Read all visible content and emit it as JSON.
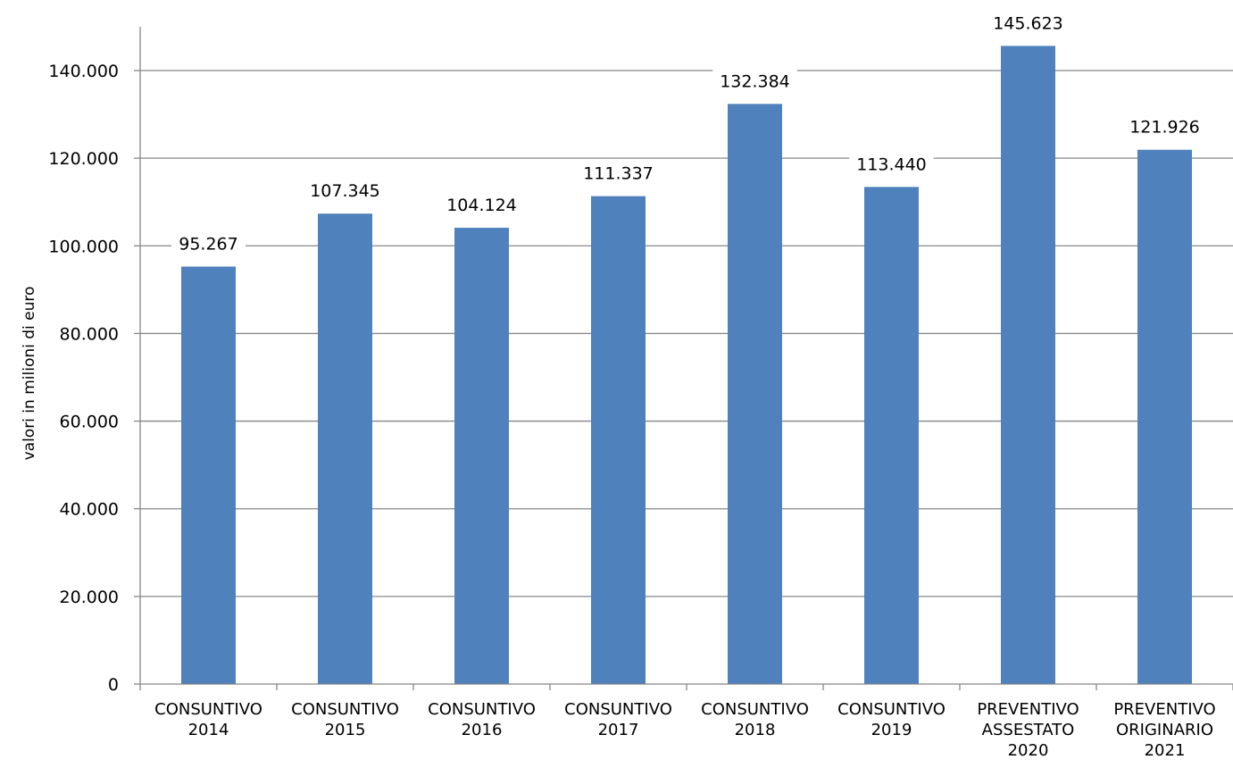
{
  "chart_data": {
    "type": "bar",
    "categories": [
      [
        "CONSUNTIVO",
        "2014"
      ],
      [
        "CONSUNTIVO",
        "2015"
      ],
      [
        "CONSUNTIVO",
        "2016"
      ],
      [
        "CONSUNTIVO",
        "2017"
      ],
      [
        "CONSUNTIVO",
        "2018"
      ],
      [
        "CONSUNTIVO",
        "2019"
      ],
      [
        "PREVENTIVO",
        "ASSESTATO",
        "2020"
      ],
      [
        "PREVENTIVO",
        "ORIGINARIO",
        "2021"
      ]
    ],
    "values": [
      95267,
      107345,
      104124,
      111337,
      132384,
      113440,
      145623,
      121926
    ],
    "data_labels": [
      "95.267",
      "107.345",
      "104.124",
      "111.337",
      "132.384",
      "113.440",
      "145.623",
      "121.926"
    ],
    "title": "",
    "xlabel": "",
    "ylabel": "valori in milioni di euro",
    "ylim": [
      0,
      140000
    ],
    "yticks": [
      0,
      20000,
      40000,
      60000,
      80000,
      100000,
      120000,
      140000
    ],
    "ytick_labels": [
      "0",
      "20.000",
      "40.000",
      "60.000",
      "80.000",
      "100.000",
      "120.000",
      "140.000"
    ],
    "grid": true,
    "legend": "none",
    "bar_color": "#4f81bd",
    "grid_color": "#878787",
    "axis_color": "#878787"
  }
}
